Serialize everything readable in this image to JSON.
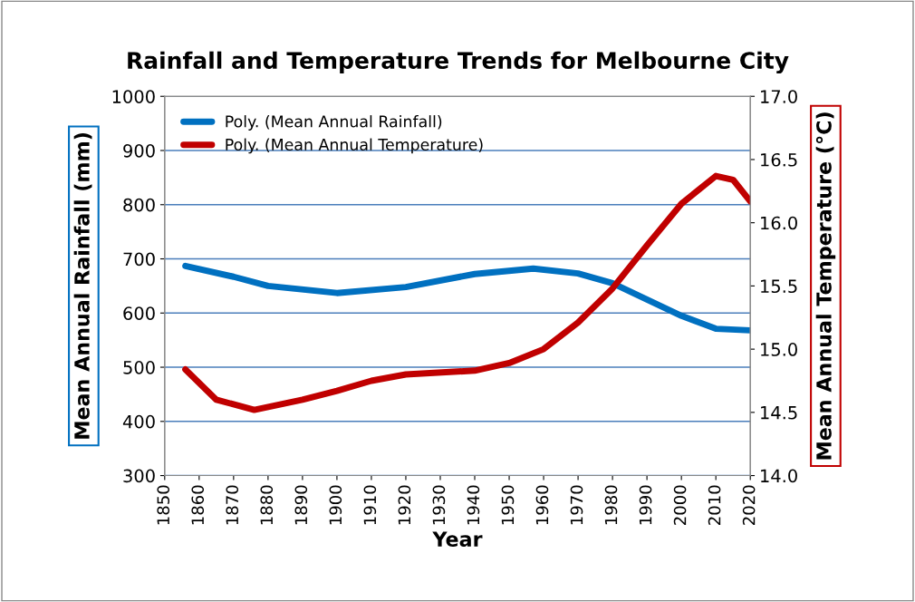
{
  "chart_data": {
    "type": "line",
    "title": "Rainfall and Temperature Trends for Melbourne City",
    "xlabel": "Year",
    "ylabel": "Mean Annual Rainfall (mm)",
    "y2label": "Mean Annual Temperature (°C)",
    "series": [
      {
        "name": "Poly. (Mean Annual Rainfall)",
        "color": "#0070c0",
        "x": [
          1856,
          1870,
          1880,
          1900,
          1920,
          1940,
          1957,
          1970,
          1980,
          1990,
          2000,
          2010,
          2020
        ],
        "values": [
          687,
          667,
          650,
          637,
          648,
          672,
          682,
          673,
          655,
          625,
          595,
          571,
          568
        ]
      },
      {
        "name": "Poly. (Mean Annual Temperature)",
        "color": "#c00000",
        "axis": "y2",
        "x": [
          1856,
          1865,
          1876,
          1890,
          1900,
          1910,
          1920,
          1940,
          1950,
          1960,
          1970,
          1980,
          1990,
          2000,
          2010,
          2015,
          2020
        ],
        "values": [
          14.84,
          14.6,
          14.52,
          14.6,
          14.67,
          14.75,
          14.8,
          14.83,
          14.89,
          15.0,
          15.21,
          15.48,
          15.82,
          16.15,
          16.37,
          16.34,
          16.17
        ]
      }
    ],
    "xlim": [
      1850,
      2020
    ],
    "xticks": [
      1850,
      1860,
      1870,
      1880,
      1890,
      1900,
      1910,
      1920,
      1930,
      1940,
      1950,
      1960,
      1970,
      1980,
      1990,
      2000,
      2010,
      2020
    ],
    "ylim": [
      300,
      1000
    ],
    "yticks": [
      300,
      400,
      500,
      600,
      700,
      800,
      900,
      1000
    ],
    "y2lim": [
      14.0,
      17.0
    ],
    "y2ticks": [
      {
        "value": 14.0,
        "label": "14.0"
      },
      {
        "value": 14.5,
        "label": "14.5"
      },
      {
        "value": 15.0,
        "label": "15.0"
      },
      {
        "value": 15.5,
        "label": "15.5"
      },
      {
        "value": 16.0,
        "label": "16.0"
      },
      {
        "value": 16.5,
        "label": "16.5"
      },
      {
        "value": 17.0,
        "label": "17.0"
      }
    ],
    "grid": "y",
    "legend": "top left",
    "marker": "none",
    "line_style": "solid"
  }
}
